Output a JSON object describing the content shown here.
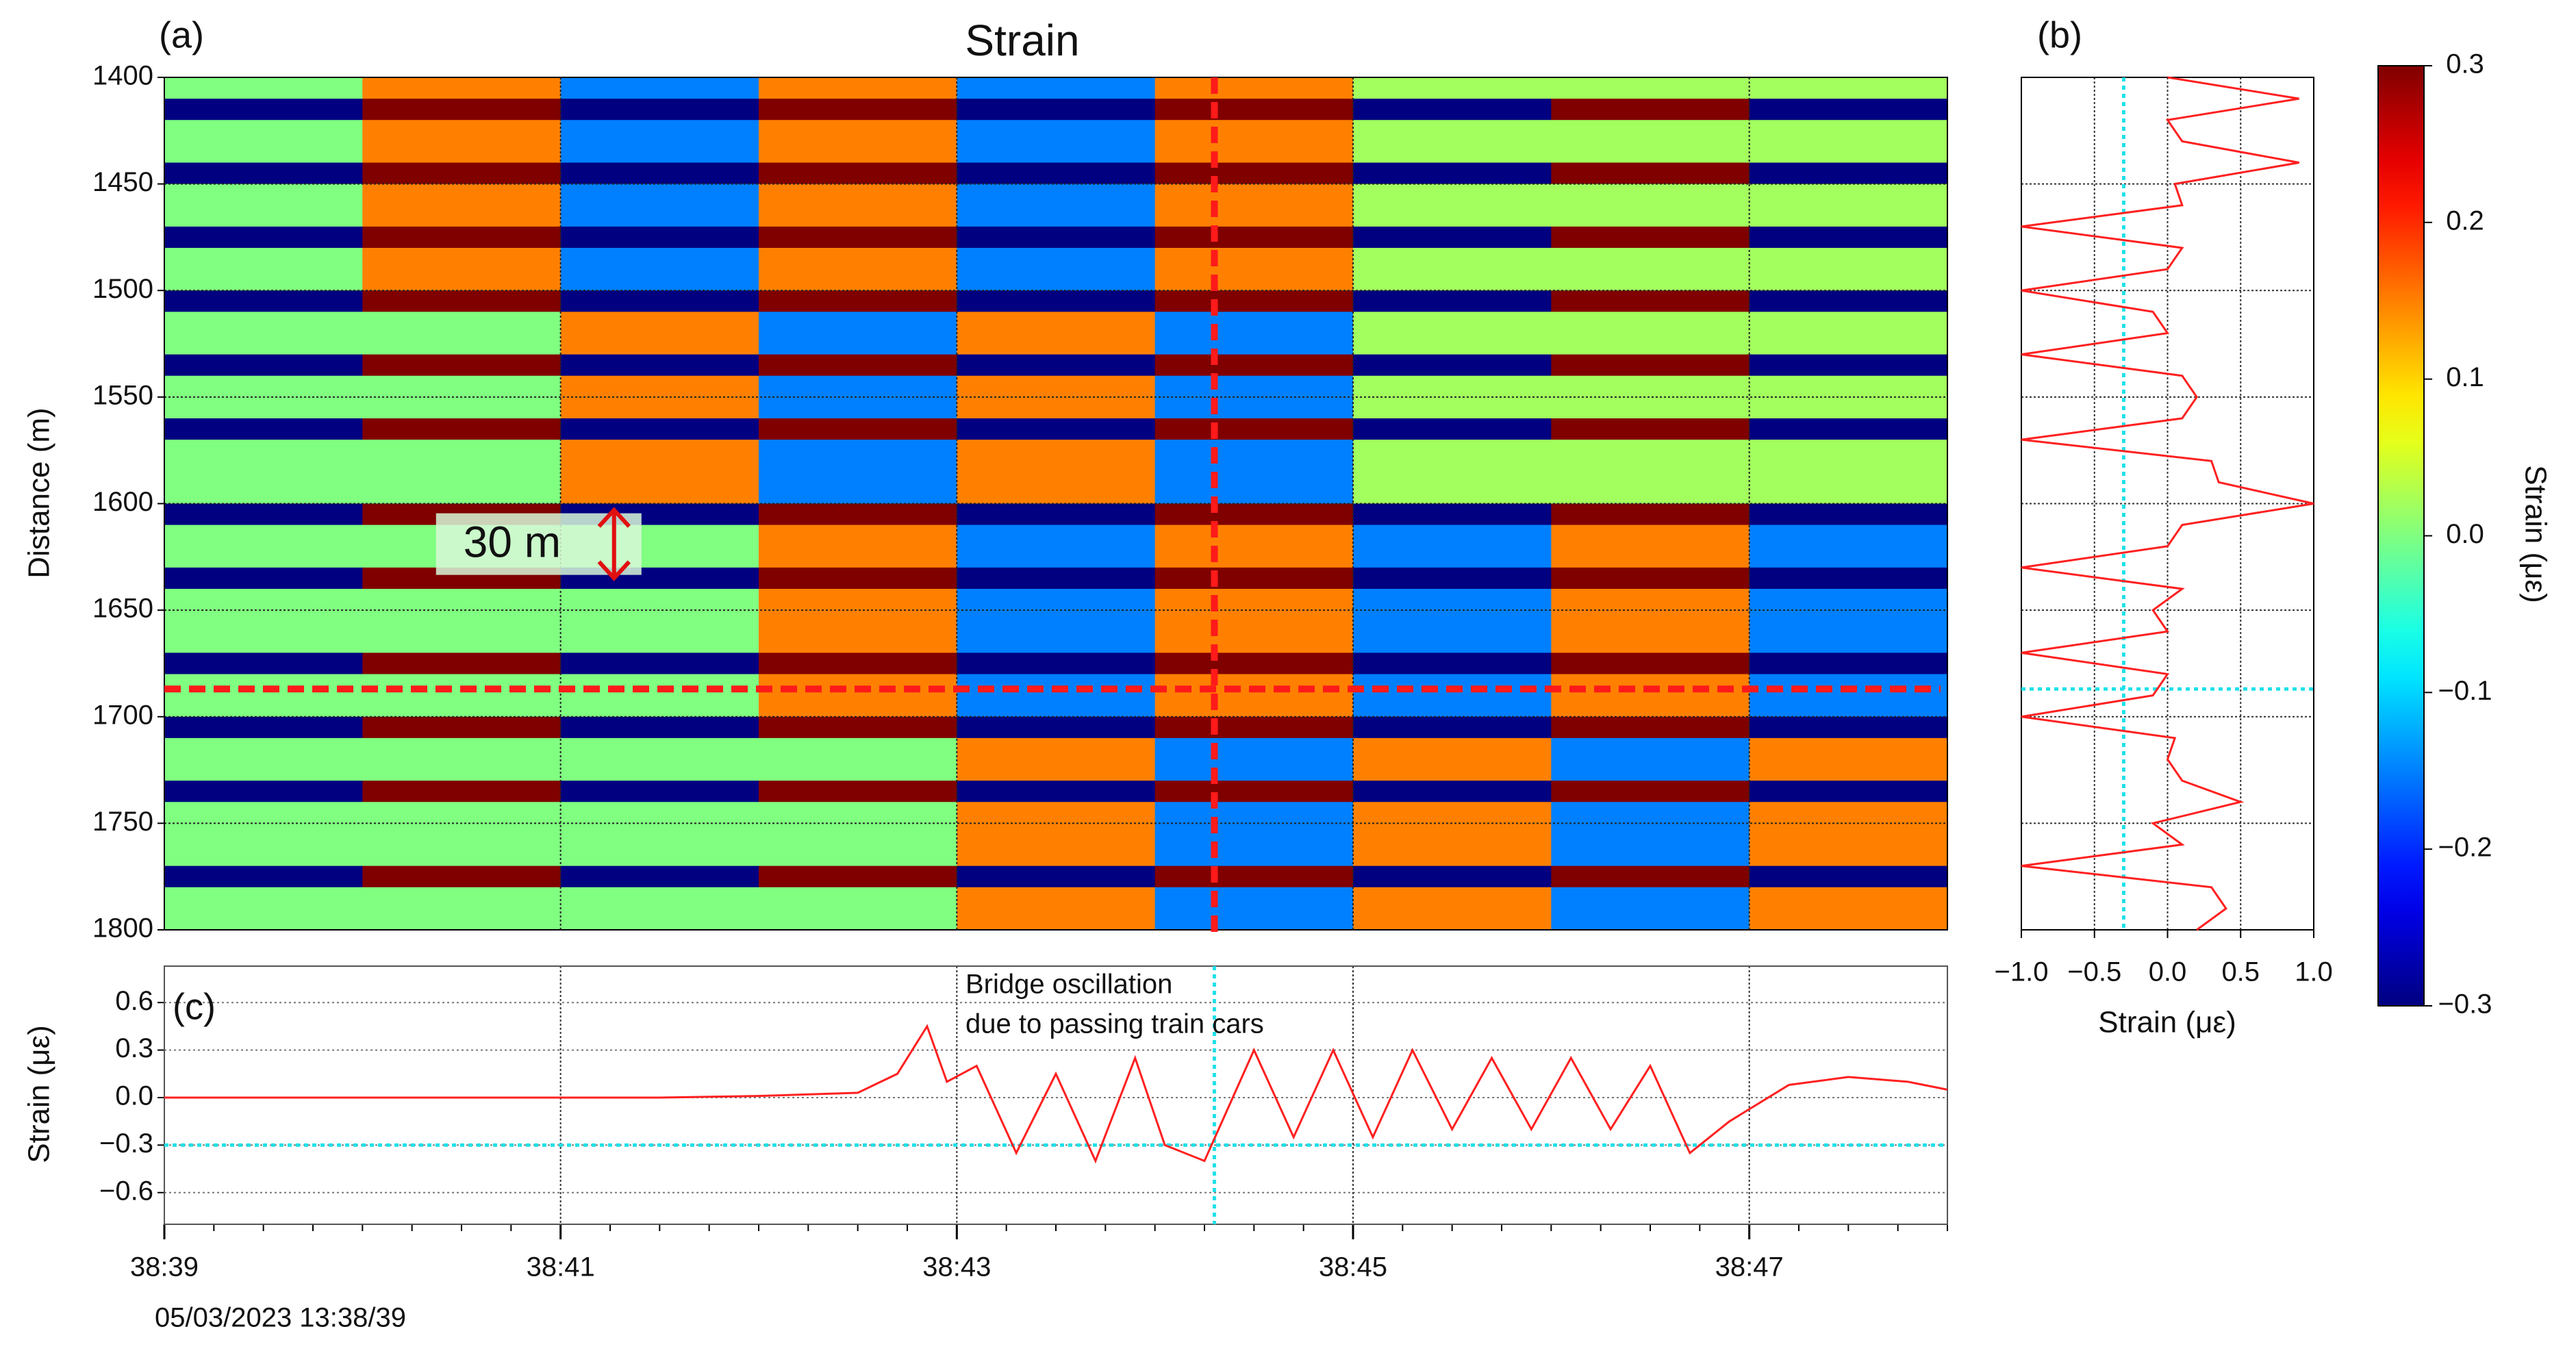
{
  "chart_data": [
    {
      "type": "heatmap",
      "panel_label": "(a)",
      "title": "Strain",
      "ylabel": "Distance (m)",
      "x": [
        0.5,
        1.5,
        2.5,
        3.5,
        4.5,
        5.5,
        6.5,
        7.5,
        8.5
      ],
      "y": [
        1405,
        1415,
        1425,
        1435,
        1445,
        1455,
        1465,
        1475,
        1485,
        1495,
        1505,
        1515,
        1525,
        1535,
        1545,
        1555,
        1565,
        1575,
        1585,
        1595,
        1605,
        1615,
        1625,
        1635,
        1645,
        1655,
        1665,
        1675,
        1685,
        1695,
        1705,
        1715,
        1725,
        1735,
        1745,
        1755,
        1765,
        1775,
        1785,
        1795
      ],
      "z": [
        [
          0,
          0.15,
          -0.15,
          0.15,
          -0.15,
          0.15,
          0.02,
          0.02,
          0.02
        ],
        [
          -0.3,
          0.3,
          -0.3,
          0.3,
          -0.3,
          0.3,
          -0.3,
          0.3,
          -0.3
        ],
        [
          0,
          0.15,
          -0.15,
          0.15,
          -0.15,
          0.15,
          0.02,
          0.02,
          0.02
        ],
        [
          0,
          0.15,
          -0.15,
          0.15,
          -0.15,
          0.15,
          0.02,
          0.02,
          0.02
        ],
        [
          -0.3,
          0.3,
          -0.3,
          0.3,
          -0.3,
          0.3,
          -0.3,
          0.3,
          -0.3
        ],
        [
          0,
          0.15,
          -0.15,
          0.15,
          -0.15,
          0.15,
          0.02,
          0.02,
          0.02
        ],
        [
          0,
          0.15,
          -0.15,
          0.15,
          -0.15,
          0.15,
          0.02,
          0.02,
          0.02
        ],
        [
          -0.3,
          0.3,
          -0.3,
          0.3,
          -0.3,
          0.3,
          -0.3,
          0.3,
          -0.3
        ],
        [
          0,
          0.15,
          -0.15,
          0.15,
          -0.15,
          0.15,
          0.02,
          0.02,
          0.02
        ],
        [
          0,
          0.15,
          -0.15,
          0.15,
          -0.15,
          0.15,
          0.02,
          0.02,
          0.02
        ],
        [
          -0.3,
          0.3,
          -0.3,
          0.3,
          -0.3,
          0.3,
          -0.3,
          0.3,
          -0.3
        ],
        [
          0,
          0,
          0.15,
          -0.15,
          0.15,
          -0.15,
          0.02,
          0.02,
          0.02
        ],
        [
          0,
          0,
          0.15,
          -0.15,
          0.15,
          -0.15,
          0.02,
          0.02,
          0.02
        ],
        [
          -0.3,
          0.3,
          -0.3,
          0.3,
          -0.3,
          0.3,
          -0.3,
          0.3,
          -0.3
        ],
        [
          0,
          0,
          0.15,
          -0.15,
          0.15,
          -0.15,
          0.02,
          0.02,
          0.02
        ],
        [
          0,
          0,
          0.15,
          -0.15,
          0.15,
          -0.15,
          0.02,
          0.02,
          0.02
        ],
        [
          -0.3,
          0.3,
          -0.3,
          0.3,
          -0.3,
          0.3,
          -0.3,
          0.3,
          -0.3
        ],
        [
          0,
          0,
          0.15,
          -0.15,
          0.15,
          -0.15,
          0.02,
          0.02,
          0.02
        ],
        [
          0,
          0,
          0.15,
          -0.15,
          0.15,
          -0.15,
          0.02,
          0.02,
          0.02
        ],
        [
          0,
          0,
          0.15,
          -0.15,
          0.15,
          -0.15,
          0.02,
          0.02,
          0.02
        ],
        [
          -0.3,
          0.3,
          -0.3,
          0.3,
          -0.3,
          0.3,
          -0.3,
          0.3,
          -0.3
        ],
        [
          0,
          0,
          0,
          0.15,
          -0.15,
          0.15,
          -0.15,
          0.15,
          -0.15
        ],
        [
          0,
          0,
          0,
          0.15,
          -0.15,
          0.15,
          -0.15,
          0.15,
          -0.15
        ],
        [
          -0.3,
          0.3,
          -0.3,
          0.3,
          -0.3,
          0.3,
          -0.3,
          0.3,
          -0.3
        ],
        [
          0,
          0,
          0,
          0.15,
          -0.15,
          0.15,
          -0.15,
          0.15,
          -0.15
        ],
        [
          0,
          0,
          0,
          0.15,
          -0.15,
          0.15,
          -0.15,
          0.15,
          -0.15
        ],
        [
          0,
          0,
          0,
          0.15,
          -0.15,
          0.15,
          -0.15,
          0.15,
          -0.15
        ],
        [
          -0.3,
          0.3,
          -0.3,
          0.3,
          -0.3,
          0.3,
          -0.3,
          0.3,
          -0.3
        ],
        [
          0,
          0,
          0,
          0.15,
          -0.15,
          0.15,
          -0.15,
          0.15,
          -0.15
        ],
        [
          0,
          0,
          0,
          0.15,
          -0.15,
          0.15,
          -0.15,
          0.15,
          -0.15
        ],
        [
          -0.3,
          0.3,
          -0.3,
          0.3,
          -0.3,
          0.3,
          -0.3,
          0.3,
          -0.3
        ],
        [
          0,
          0,
          0,
          0,
          0.15,
          -0.15,
          0.15,
          -0.15,
          0.15
        ],
        [
          0,
          0,
          0,
          0,
          0.15,
          -0.15,
          0.15,
          -0.15,
          0.15
        ],
        [
          -0.3,
          0.3,
          -0.3,
          0.3,
          -0.3,
          0.3,
          -0.3,
          0.3,
          -0.3
        ],
        [
          0,
          0,
          0,
          0,
          0.15,
          -0.15,
          0.15,
          -0.15,
          0.15
        ],
        [
          0,
          0,
          0,
          0,
          0.15,
          -0.15,
          0.15,
          -0.15,
          0.15
        ],
        [
          0,
          0,
          0,
          0,
          0.15,
          -0.15,
          0.15,
          -0.15,
          0.15
        ],
        [
          -0.3,
          0.3,
          -0.3,
          0.3,
          -0.3,
          0.3,
          -0.3,
          0.3,
          -0.3
        ],
        [
          0,
          0,
          0,
          0,
          0.15,
          -0.15,
          0.15,
          -0.15,
          0.15
        ],
        [
          0,
          0,
          0,
          0,
          0.15,
          -0.15,
          0.15,
          -0.15,
          0.15
        ]
      ],
      "xlim": [
        0,
        9
      ],
      "xticks": [
        0,
        2,
        4,
        6,
        8
      ],
      "ylim": [
        1400,
        1800
      ],
      "yticks": [
        1400,
        1450,
        1500,
        1550,
        1600,
        1650,
        1700,
        1750,
        1800
      ],
      "reference_lines": {
        "x": 5.3,
        "y": 1687,
        "color": "#ff1a1a"
      },
      "annotation": {
        "text": "30 m",
        "x": 2.27,
        "y1": 1603,
        "y2": 1635,
        "color": "#e01010"
      },
      "colorbar": {
        "label": "Strain (με)",
        "lim": [
          -0.3,
          0.3
        ],
        "ticks": [
          0.3,
          0.2,
          0.1,
          {
            "value": 0.0,
            "label": "0.0"
          },
          {
            "value": -0.1,
            "label": "−0.1"
          },
          {
            "value": -0.2,
            "label": "−0.2"
          },
          {
            "value": -0.3,
            "label": "−0.3"
          }
        ]
      }
    },
    {
      "type": "line",
      "panel_label": "(c)",
      "ylabel": "Strain (με)",
      "date_label": "05/03/2023 13:38/39",
      "annotation": [
        "Bridge oscillation",
        "due to passing train cars"
      ],
      "x": [
        0,
        0.5,
        1,
        1.5,
        2,
        2.5,
        3,
        3.5,
        3.7,
        3.85,
        3.95,
        4.1,
        4.3,
        4.5,
        4.7,
        4.9,
        5.05,
        5.25,
        5.5,
        5.7,
        5.9,
        6.1,
        6.3,
        6.5,
        6.7,
        6.9,
        7.1,
        7.3,
        7.5,
        7.7,
        7.9,
        8.2,
        8.5,
        8.8,
        9.0
      ],
      "series": [
        {
          "color": "#ff2020",
          "values": [
            0,
            0,
            0,
            0,
            0,
            0,
            0.01,
            0.03,
            0.15,
            0.45,
            0.1,
            0.2,
            -0.35,
            0.15,
            -0.4,
            0.25,
            -0.3,
            -0.4,
            0.3,
            -0.25,
            0.3,
            -0.25,
            0.3,
            -0.2,
            0.25,
            -0.2,
            0.25,
            -0.2,
            0.2,
            -0.35,
            -0.15,
            0.08,
            0.13,
            0.1,
            0.05
          ]
        }
      ],
      "xlim": [
        0,
        9
      ],
      "xticks": [
        {
          "value": 0,
          "label": "38:39"
        },
        {
          "value": 2,
          "label": "38:41"
        },
        {
          "value": 4,
          "label": "38:43"
        },
        {
          "value": 6,
          "label": "38:45"
        },
        {
          "value": 8,
          "label": "38:47"
        }
      ],
      "ylim": [
        -0.8,
        0.83
      ],
      "yticks": [
        0.6,
        0.3,
        {
          "value": 0.0,
          "label": "0.0"
        },
        {
          "value": -0.3,
          "label": "−0.3"
        },
        {
          "value": -0.6,
          "label": "−0.6"
        }
      ],
      "reference_lines": {
        "x": 5.3,
        "y": -0.3,
        "color": "#20e0e8"
      },
      "grid": true
    },
    {
      "type": "line",
      "orientation": "vertical",
      "panel_label": "(b)",
      "xlabel": "Strain (με)",
      "y": [
        1400,
        1410,
        1420,
        1430,
        1440,
        1450,
        1460,
        1470,
        1480,
        1490,
        1500,
        1510,
        1520,
        1530,
        1540,
        1550,
        1560,
        1570,
        1580,
        1590,
        1600,
        1610,
        1620,
        1630,
        1640,
        1650,
        1660,
        1670,
        1680,
        1690,
        1700,
        1710,
        1720,
        1730,
        1740,
        1750,
        1760,
        1770,
        1780,
        1790,
        1800
      ],
      "series": [
        {
          "color": "#ff2020",
          "values": [
            0,
            0.9,
            0,
            0.1,
            0.9,
            0.05,
            0.1,
            -1.0,
            0.1,
            0,
            -1.0,
            -0.1,
            0,
            -1.0,
            0.1,
            0.2,
            0.1,
            -1.0,
            0.3,
            0.35,
            1.0,
            0.1,
            0,
            -1.0,
            0.1,
            -0.1,
            0,
            -1.0,
            0,
            -0.1,
            -1.0,
            0.05,
            0,
            0.1,
            0.5,
            -0.1,
            0.1,
            -1.0,
            0.3,
            0.4,
            0.2
          ]
        }
      ],
      "xlim": [
        -1,
        1
      ],
      "xticks": [
        {
          "value": -1,
          "label": "−1.0"
        },
        {
          "value": -0.5,
          "label": "−0.5"
        },
        {
          "value": 0,
          "label": "0.0"
        },
        0.5,
        {
          "value": 1,
          "label": "1.0"
        }
      ],
      "ylim": [
        1400,
        1800
      ],
      "yticks": [
        1400,
        1450,
        1500,
        1550,
        1600,
        1650,
        1700,
        1750,
        1800
      ],
      "reference_lines": {
        "x": -0.3,
        "y": 1687,
        "color": "#20e0e8"
      },
      "grid": true
    }
  ]
}
